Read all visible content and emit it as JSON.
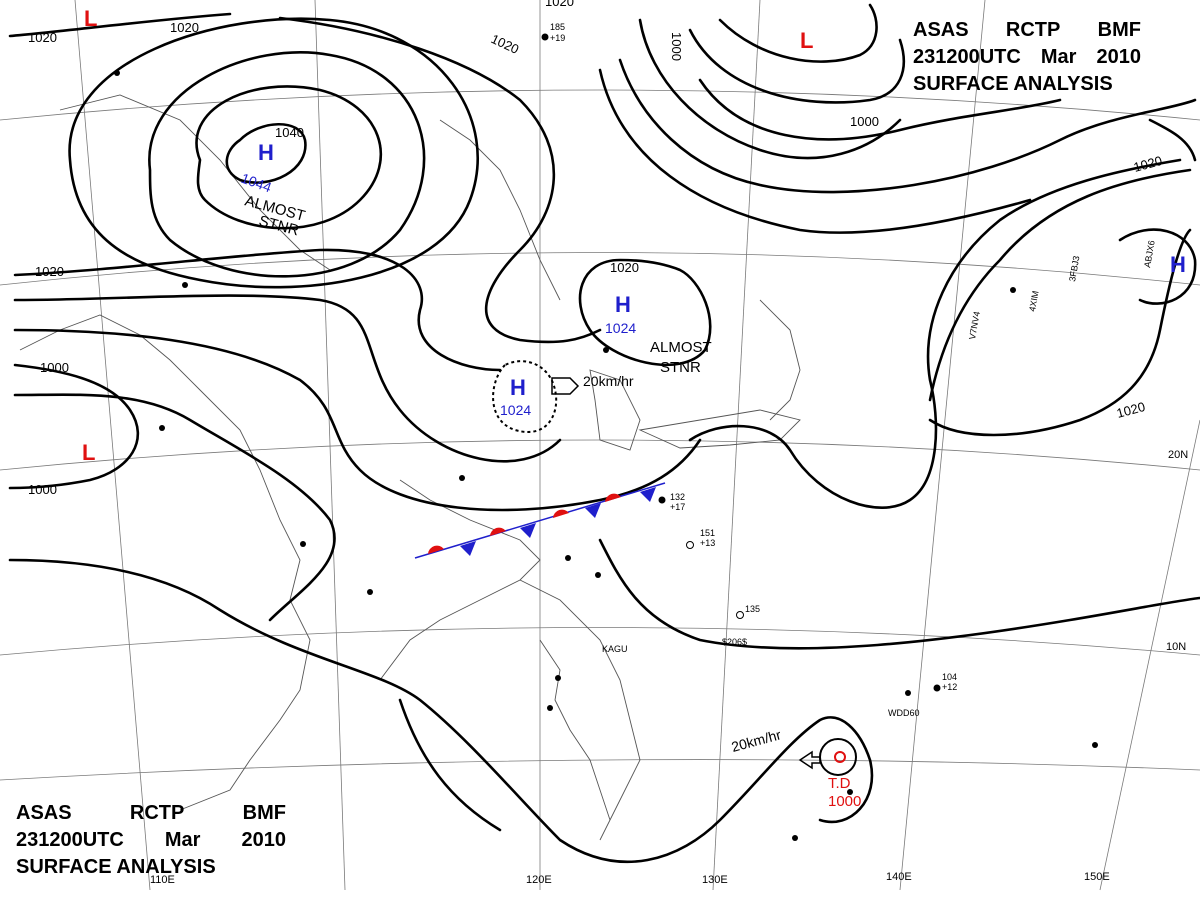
{
  "header": {
    "agency": "ASAS",
    "station": "RCTP",
    "office": "BMF",
    "valid_time": "231200UTC",
    "month": "Mar",
    "year": "2010",
    "product": "SURFACE ANALYSIS"
  },
  "isobar_labels": [
    "1020",
    "1020",
    "1020",
    "1020",
    "1000",
    "1020",
    "1000",
    "1020",
    "1020",
    "1000",
    "1000",
    "1040",
    "1020"
  ],
  "pressure_systems": [
    {
      "type": "H",
      "value": "1044",
      "note_line1": "ALMOST",
      "note_line2": "STNR"
    },
    {
      "type": "H",
      "value": "1024",
      "note_line1": "ALMOST",
      "note_line2": "STNR"
    },
    {
      "type": "H",
      "value": "1024",
      "motion": "20km/hr"
    },
    {
      "type": "H"
    },
    {
      "type": "L"
    },
    {
      "type": "L"
    },
    {
      "type": "L"
    },
    {
      "type": "T.D",
      "value": "1000",
      "motion": "20km/hr"
    }
  ],
  "longitude_labels": [
    "110E",
    "120E",
    "130E",
    "140E",
    "150E"
  ],
  "latitude_labels": [
    "20N",
    "10N"
  ],
  "station_samples": [
    "185",
    "+19",
    "132",
    "+17",
    "151",
    "+13",
    "135",
    "$206$",
    "KAGU",
    "WDD60",
    "ABJX6",
    "3FBJ3",
    "4XIM",
    "V7NV4",
    "104",
    "+12"
  ],
  "colors": {
    "isobar": "#000000",
    "high": "#1f1fcc",
    "low": "#e01010",
    "warm_front": "#e01010",
    "cold_front": "#1f1fcc",
    "grid": "#7a7a7a",
    "coast": "#555555"
  }
}
